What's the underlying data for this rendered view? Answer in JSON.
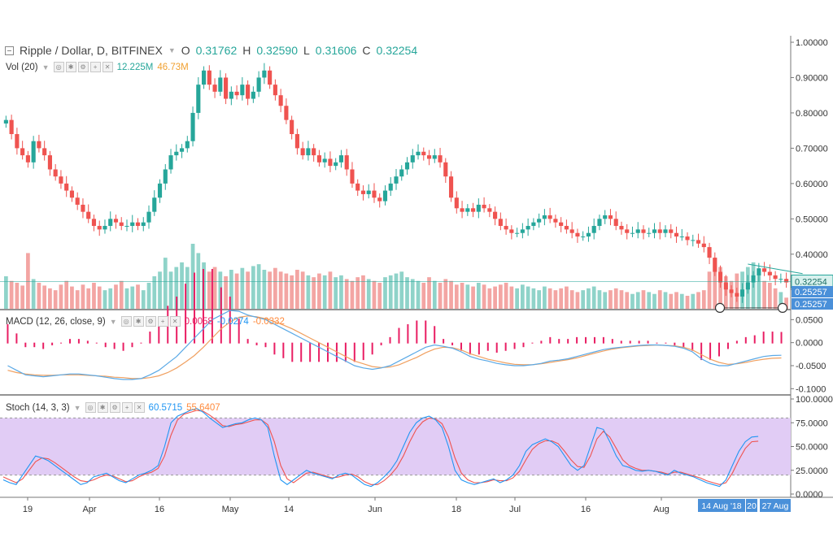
{
  "header": {
    "symbol": "Ripple / Dollar, D, BITFINEX",
    "o_label": "O",
    "o": "0.31762",
    "h_label": "H",
    "h": "0.32590",
    "l_label": "L",
    "l": "0.31606",
    "c_label": "C",
    "c": "0.32254"
  },
  "volume_legend": {
    "name": "Vol (20)",
    "v1": "12.225M",
    "v2": "46.73M"
  },
  "macd_legend": {
    "name": "MACD (12, 26, close, 9)",
    "v1": "0.0058",
    "v2": "-0.0274",
    "v3": "-0.0332"
  },
  "stoch_legend": {
    "name": "Stoch (14, 3, 3)",
    "v1": "60.5715",
    "v2": "55.6407"
  },
  "colors": {
    "up": "#26a69a",
    "down": "#ef5350",
    "macd": "#5aa9e6",
    "signal": "#f0a060",
    "hist": "#e91e63",
    "stoch_band": "#e1ccf5",
    "price_line": "#26a69a",
    "axis_tag": "#4a90d9"
  },
  "chart_data": [
    {
      "type": "candlestick",
      "title": "Ripple / Dollar, D, BITFINEX",
      "price_axis": [
        "1.00000",
        "0.90000",
        "0.80000",
        "0.70000",
        "0.60000",
        "0.50000",
        "0.40000",
        "0.30000"
      ],
      "ylim": [
        0.25,
        1.0
      ],
      "current_price_tag": "0.32254",
      "level_tags": [
        "0.25257",
        "0.25257"
      ],
      "time_labels": [
        "19",
        "Apr",
        "16",
        "May",
        "14",
        "Jun",
        "18",
        "Jul",
        "16",
        "Aug"
      ],
      "time_tags": [
        "14 Aug '18",
        "20",
        "27 Aug"
      ],
      "closes": [
        0.78,
        0.74,
        0.7,
        0.68,
        0.66,
        0.72,
        0.7,
        0.68,
        0.64,
        0.62,
        0.6,
        0.58,
        0.56,
        0.54,
        0.52,
        0.5,
        0.48,
        0.47,
        0.48,
        0.5,
        0.49,
        0.48,
        0.48,
        0.49,
        0.48,
        0.49,
        0.52,
        0.56,
        0.6,
        0.64,
        0.68,
        0.69,
        0.7,
        0.72,
        0.8,
        0.88,
        0.92,
        0.88,
        0.86,
        0.9,
        0.84,
        0.86,
        0.85,
        0.88,
        0.84,
        0.86,
        0.9,
        0.92,
        0.88,
        0.85,
        0.82,
        0.78,
        0.74,
        0.7,
        0.68,
        0.7,
        0.68,
        0.66,
        0.67,
        0.65,
        0.66,
        0.68,
        0.64,
        0.6,
        0.58,
        0.57,
        0.58,
        0.56,
        0.55,
        0.58,
        0.6,
        0.62,
        0.64,
        0.66,
        0.68,
        0.69,
        0.68,
        0.67,
        0.68,
        0.66,
        0.62,
        0.56,
        0.53,
        0.52,
        0.53,
        0.52,
        0.54,
        0.53,
        0.52,
        0.5,
        0.48,
        0.47,
        0.46,
        0.46,
        0.47,
        0.48,
        0.49,
        0.5,
        0.51,
        0.5,
        0.49,
        0.48,
        0.47,
        0.46,
        0.45,
        0.45,
        0.46,
        0.48,
        0.5,
        0.51,
        0.5,
        0.48,
        0.47,
        0.46,
        0.46,
        0.47,
        0.46,
        0.46,
        0.47,
        0.46,
        0.47,
        0.46,
        0.45,
        0.45,
        0.44,
        0.44,
        0.43,
        0.42,
        0.39,
        0.35,
        0.32,
        0.3,
        0.29,
        0.28,
        0.3,
        0.32,
        0.34,
        0.36,
        0.35,
        0.34,
        0.33,
        0.33,
        0.32
      ],
      "volumes": [
        35,
        30,
        28,
        25,
        60,
        32,
        28,
        25,
        22,
        20,
        26,
        30,
        24,
        20,
        26,
        22,
        28,
        24,
        20,
        22,
        26,
        30,
        22,
        24,
        26,
        20,
        28,
        35,
        40,
        55,
        40,
        45,
        50,
        45,
        70,
        60,
        50,
        40,
        45,
        40,
        35,
        42,
        38,
        44,
        40,
        46,
        48,
        42,
        40,
        44,
        40,
        38,
        36,
        42,
        40,
        36,
        34,
        38,
        36,
        40,
        34,
        36,
        32,
        30,
        34,
        36,
        32,
        30,
        28,
        34,
        36,
        38,
        40,
        34,
        32,
        30,
        28,
        34,
        30,
        28,
        32,
        30,
        26,
        28,
        26,
        24,
        28,
        26,
        22,
        24,
        26,
        28,
        24,
        22,
        26,
        24,
        22,
        20,
        24,
        22,
        20,
        22,
        24,
        20,
        18,
        20,
        22,
        24,
        20,
        18,
        20,
        22,
        20,
        18,
        16,
        18,
        20,
        18,
        16,
        20,
        18,
        16,
        18,
        16,
        14,
        16,
        18,
        20,
        40,
        55,
        45,
        35,
        30,
        38,
        40,
        45,
        50,
        38,
        30,
        28,
        22,
        18,
        12
      ],
      "macd": [
        -0.05,
        -0.06,
        -0.07,
        -0.072,
        -0.074,
        -0.072,
        -0.07,
        -0.068,
        -0.068,
        -0.07,
        -0.072,
        -0.075,
        -0.078,
        -0.08,
        -0.08,
        -0.078,
        -0.07,
        -0.06,
        -0.045,
        -0.03,
        -0.01,
        0.01,
        0.03,
        0.05,
        0.06,
        0.07,
        0.068,
        0.06,
        0.055,
        0.05,
        0.04,
        0.03,
        0.02,
        0.01,
        0.0,
        -0.01,
        -0.02,
        -0.03,
        -0.04,
        -0.05,
        -0.055,
        -0.058,
        -0.055,
        -0.05,
        -0.04,
        -0.03,
        -0.02,
        -0.01,
        -0.005,
        -0.008,
        -0.012,
        -0.02,
        -0.03,
        -0.036,
        -0.04,
        -0.045,
        -0.048,
        -0.05,
        -0.05,
        -0.048,
        -0.045,
        -0.04,
        -0.038,
        -0.035,
        -0.03,
        -0.025,
        -0.02,
        -0.015,
        -0.012,
        -0.01,
        -0.008,
        -0.006,
        -0.005,
        -0.005,
        -0.006,
        -0.008,
        -0.012,
        -0.02,
        -0.035,
        -0.045,
        -0.05,
        -0.05,
        -0.045,
        -0.04,
        -0.035,
        -0.03,
        -0.028,
        -0.0274
      ],
      "signal": [
        -0.06,
        -0.065,
        -0.068,
        -0.07,
        -0.071,
        -0.071,
        -0.07,
        -0.07,
        -0.07,
        -0.071,
        -0.072,
        -0.073,
        -0.075,
        -0.076,
        -0.078,
        -0.078,
        -0.076,
        -0.072,
        -0.065,
        -0.055,
        -0.042,
        -0.028,
        -0.01,
        0.01,
        0.03,
        0.045,
        0.055,
        0.058,
        0.056,
        0.052,
        0.046,
        0.038,
        0.03,
        0.02,
        0.01,
        0.0,
        -0.01,
        -0.02,
        -0.03,
        -0.04,
        -0.046,
        -0.052,
        -0.054,
        -0.053,
        -0.048,
        -0.04,
        -0.032,
        -0.022,
        -0.014,
        -0.01,
        -0.011,
        -0.016,
        -0.024,
        -0.03,
        -0.036,
        -0.04,
        -0.044,
        -0.047,
        -0.048,
        -0.048,
        -0.046,
        -0.043,
        -0.04,
        -0.037,
        -0.033,
        -0.028,
        -0.023,
        -0.018,
        -0.014,
        -0.011,
        -0.009,
        -0.007,
        -0.006,
        -0.005,
        -0.006,
        -0.007,
        -0.01,
        -0.016,
        -0.026,
        -0.036,
        -0.043,
        -0.047,
        -0.046,
        -0.043,
        -0.039,
        -0.036,
        -0.034,
        -0.0332
      ],
      "macd_axis": [
        "0.0500",
        "0.0000",
        "-0.0500",
        "-0.1000"
      ],
      "stoch_k": [
        15,
        12,
        10,
        20,
        30,
        40,
        38,
        35,
        30,
        25,
        20,
        15,
        10,
        12,
        18,
        20,
        22,
        18,
        14,
        12,
        16,
        20,
        22,
        25,
        30,
        50,
        75,
        82,
        85,
        88,
        90,
        86,
        80,
        75,
        70,
        72,
        74,
        75,
        78,
        80,
        78,
        70,
        40,
        15,
        10,
        15,
        20,
        25,
        22,
        20,
        18,
        16,
        20,
        22,
        20,
        15,
        10,
        8,
        12,
        18,
        25,
        35,
        50,
        65,
        75,
        80,
        82,
        78,
        70,
        50,
        25,
        15,
        12,
        10,
        12,
        14,
        16,
        12,
        15,
        20,
        30,
        45,
        52,
        55,
        58,
        55,
        50,
        40,
        30,
        25,
        30,
        50,
        70,
        68,
        55,
        40,
        30,
        28,
        25,
        24,
        25,
        24,
        22,
        20,
        25,
        22,
        20,
        18,
        15,
        12,
        10,
        8,
        15,
        30,
        45,
        55,
        60,
        60.57
      ],
      "stoch_d": [
        18,
        15,
        12,
        16,
        25,
        34,
        38,
        37,
        33,
        28,
        23,
        18,
        14,
        13,
        15,
        18,
        20,
        19,
        16,
        13,
        14,
        18,
        21,
        23,
        27,
        40,
        62,
        78,
        84,
        86,
        88,
        87,
        83,
        78,
        72,
        71,
        73,
        74,
        76,
        78,
        78,
        73,
        55,
        30,
        16,
        12,
        17,
        22,
        23,
        21,
        19,
        17,
        18,
        20,
        21,
        18,
        13,
        10,
        10,
        14,
        20,
        28,
        40,
        55,
        68,
        76,
        80,
        79,
        74,
        60,
        38,
        22,
        15,
        12,
        12,
        13,
        15,
        14,
        14,
        17,
        24,
        36,
        47,
        53,
        56,
        56,
        53,
        45,
        36,
        29,
        28,
        40,
        58,
        66,
        60,
        48,
        36,
        30,
        27,
        25,
        25,
        24,
        23,
        21,
        23,
        23,
        21,
        19,
        17,
        14,
        12,
        10,
        12,
        22,
        36,
        48,
        55,
        55.64
      ],
      "stoch_axis": [
        "100.0000",
        "75.0000",
        "50.0000",
        "25.0000",
        "0.0000"
      ]
    }
  ]
}
